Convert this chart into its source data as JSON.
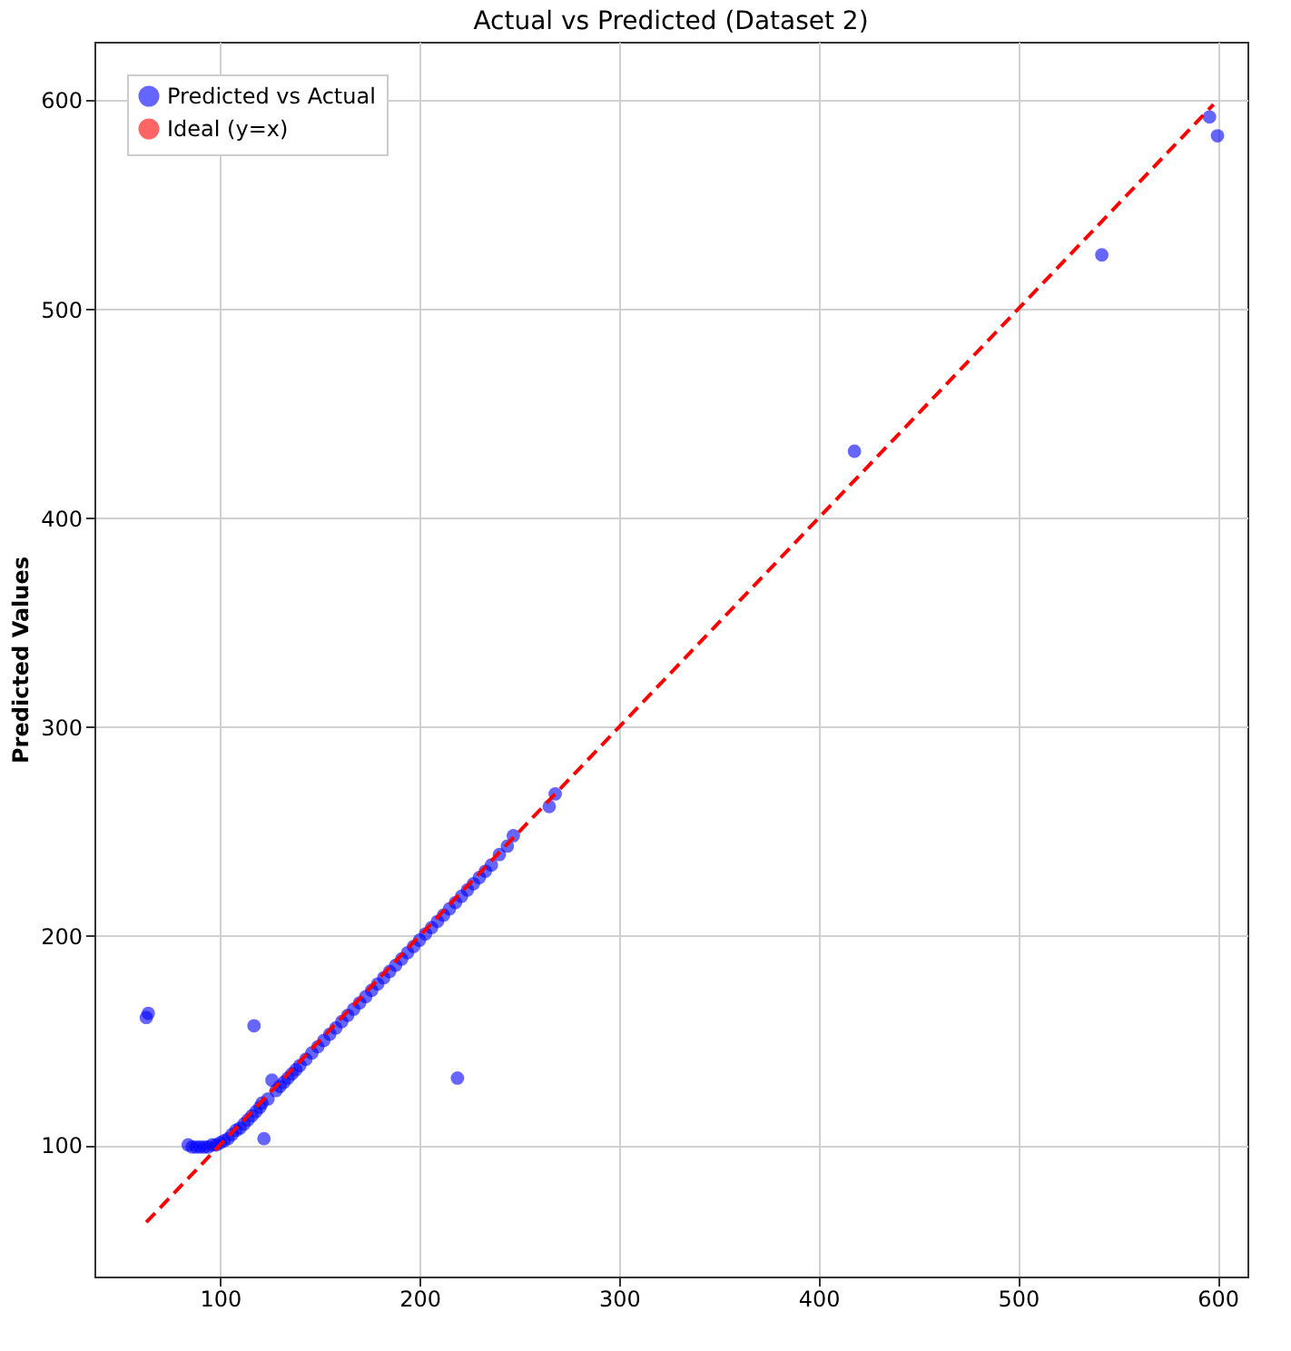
{
  "chart_data": {
    "type": "scatter",
    "title": "Actual vs Predicted (Dataset 2)",
    "ylabel": "Predicted Values",
    "xlim": [
      37,
      615
    ],
    "ylim": [
      37,
      628
    ],
    "xticks": [
      100,
      200,
      300,
      400,
      500,
      600
    ],
    "yticks": [
      100,
      200,
      300,
      400,
      500,
      600
    ],
    "grid": true,
    "legend": "top left",
    "marker": "circle",
    "series": [
      {
        "name": "Predicted vs Actual",
        "color": "#0000ff",
        "x": [
          63,
          64,
          84,
          86,
          88,
          90,
          92,
          94,
          96,
          98,
          100,
          102,
          104,
          106,
          108,
          110,
          112,
          114,
          116,
          117,
          118,
          120,
          121,
          122,
          124,
          126,
          128,
          130,
          132,
          134,
          136,
          138,
          140,
          143,
          146,
          149,
          152,
          155,
          158,
          161,
          164,
          167,
          170,
          173,
          176,
          179,
          182,
          185,
          188,
          191,
          194,
          197,
          200,
          203,
          206,
          209,
          212,
          215,
          218,
          219,
          221,
          224,
          227,
          230,
          233,
          236,
          240,
          244,
          247,
          265,
          268,
          418,
          542,
          596,
          600
        ],
        "values": [
          161,
          163,
          100,
          99,
          99,
          99,
          99,
          99,
          100,
          100,
          101,
          102,
          103,
          105,
          107,
          108,
          110,
          112,
          114,
          157,
          116,
          118,
          120,
          103,
          122,
          131,
          126,
          128,
          130,
          132,
          134,
          136,
          138,
          141,
          144,
          147,
          150,
          153,
          156,
          159,
          162,
          165,
          168,
          171,
          174,
          177,
          180,
          183,
          186,
          189,
          192,
          195,
          198,
          201,
          204,
          207,
          210,
          213,
          216,
          132,
          219,
          222,
          225,
          228,
          231,
          234,
          239,
          243,
          248,
          262,
          268,
          432,
          526,
          592,
          583
        ]
      },
      {
        "name": "Ideal (y=x)",
        "color": "#ff0000",
        "type": "line",
        "line_style": "dashed",
        "marker": "none",
        "x": [
          63,
          598
        ],
        "values": [
          63,
          598
        ]
      }
    ]
  }
}
